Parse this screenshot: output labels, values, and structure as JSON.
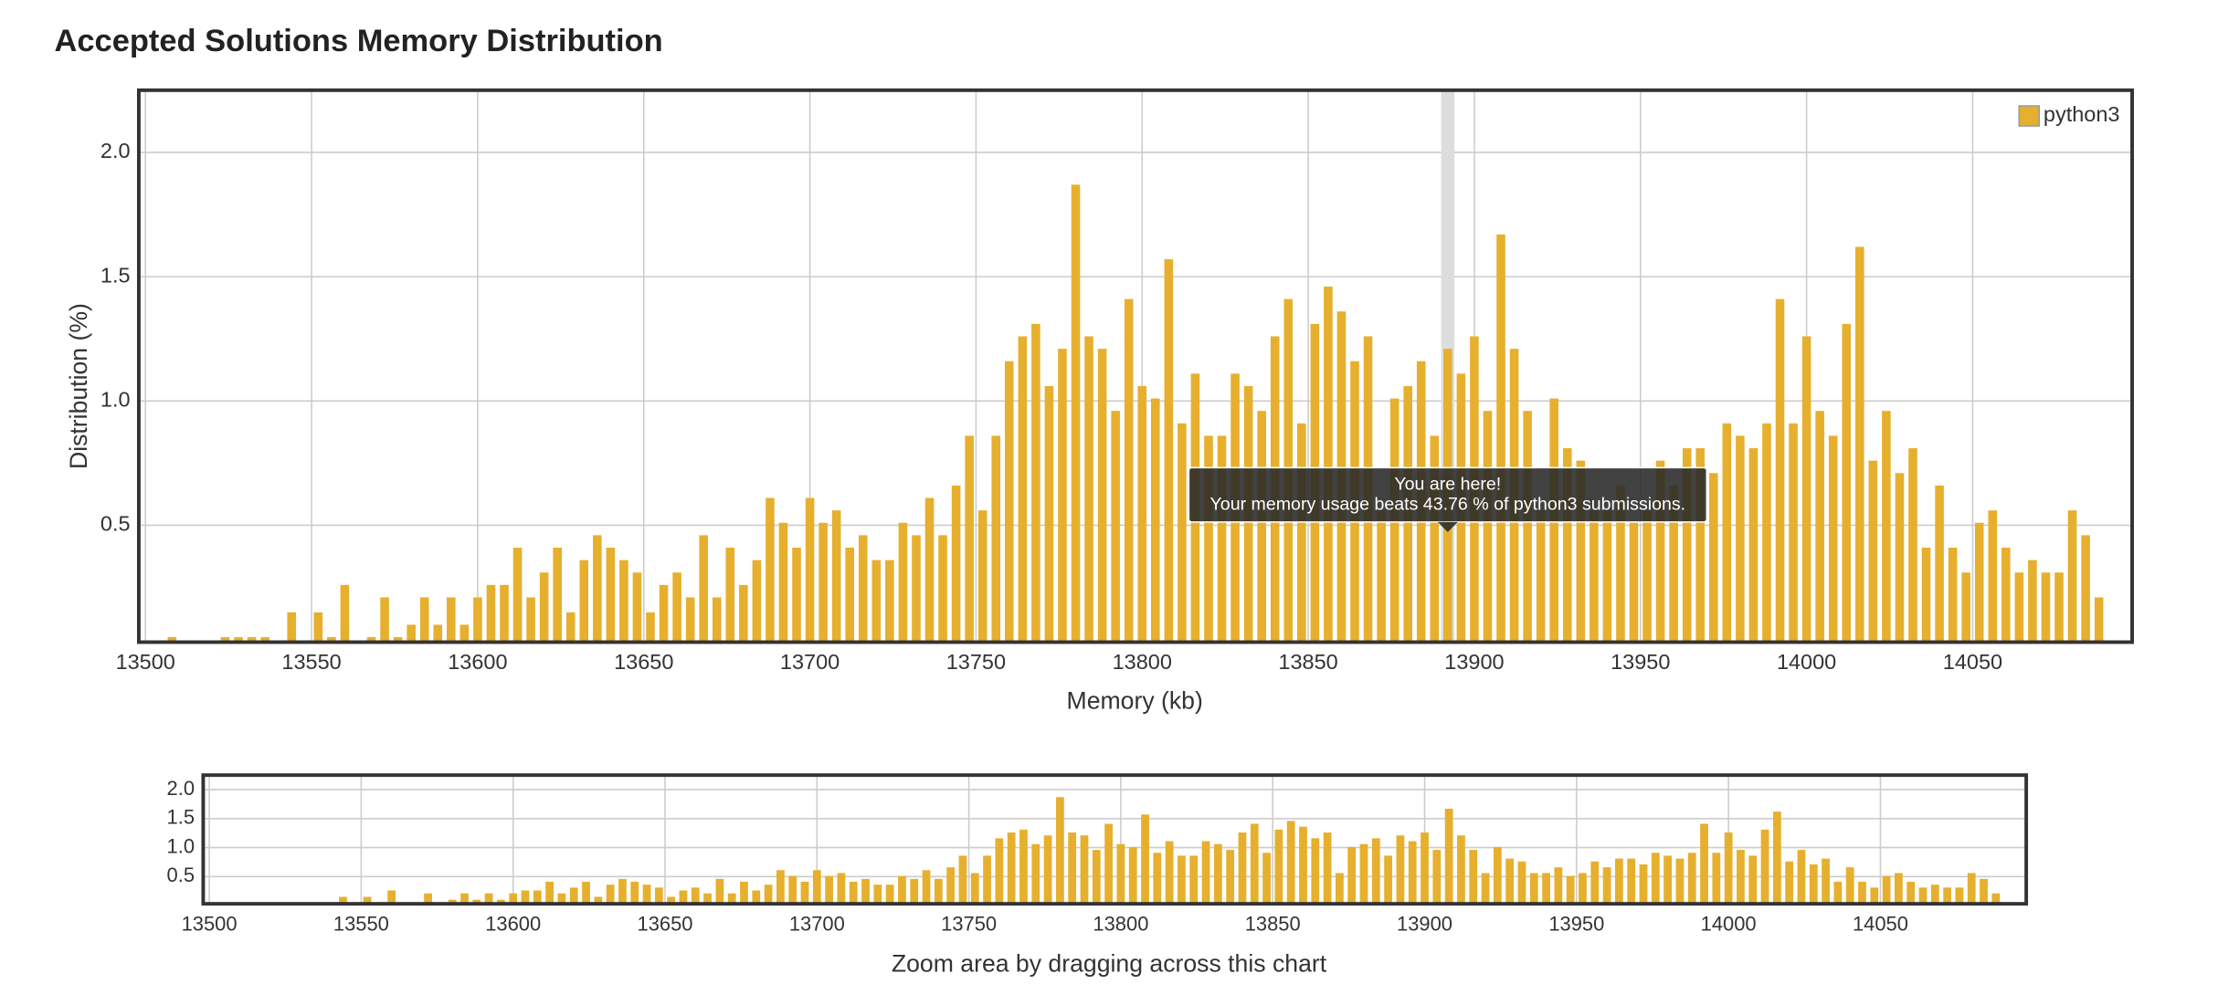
{
  "chart_data": {
    "type": "bar",
    "title": "Accepted Solutions Memory Distribution",
    "x_label": "Memory (kb)",
    "y_label": "Distribution (%)",
    "legend": "top-right",
    "grid": true,
    "xlim": [
      13498,
      14098
    ],
    "xticks": [
      13500,
      13550,
      13600,
      13650,
      13700,
      13750,
      13800,
      13850,
      13900,
      13950,
      14000,
      14050
    ],
    "ylim": [
      0.03,
      2.25
    ],
    "yticks": [
      0.5,
      {
        "value": 1,
        "label": "1.0"
      },
      1.5,
      {
        "value": 2,
        "label": "2.0"
      }
    ],
    "x": [
      13508,
      13512,
      13516,
      13520,
      13524,
      13528,
      13532,
      13536,
      13540,
      13544,
      13548,
      13552,
      13556,
      13560,
      13564,
      13568,
      13572,
      13576,
      13580,
      13584,
      13588,
      13592,
      13596,
      13600,
      13604,
      13608,
      13612,
      13616,
      13620,
      13624,
      13628,
      13632,
      13636,
      13640,
      13644,
      13648,
      13652,
      13656,
      13660,
      13664,
      13668,
      13672,
      13676,
      13680,
      13684,
      13688,
      13692,
      13696,
      13700,
      13704,
      13708,
      13712,
      13716,
      13720,
      13724,
      13728,
      13732,
      13736,
      13740,
      13744,
      13748,
      13752,
      13756,
      13760,
      13764,
      13768,
      13772,
      13776,
      13780,
      13784,
      13788,
      13792,
      13796,
      13800,
      13804,
      13808,
      13812,
      13816,
      13820,
      13824,
      13828,
      13832,
      13836,
      13840,
      13844,
      13848,
      13852,
      13856,
      13860,
      13864,
      13868,
      13872,
      13876,
      13880,
      13884,
      13888,
      13892,
      13896,
      13900,
      13904,
      13908,
      13912,
      13916,
      13920,
      13924,
      13928,
      13932,
      13936,
      13940,
      13944,
      13948,
      13952,
      13956,
      13960,
      13964,
      13968,
      13972,
      13976,
      13980,
      13984,
      13988,
      13992,
      13996,
      14000,
      14004,
      14008,
      14012,
      14016,
      14020,
      14024,
      14028,
      14032,
      14036,
      14040,
      14044,
      14048,
      14052,
      14056,
      14060,
      14064,
      14068,
      14072,
      14076,
      14080,
      14084,
      14088
    ],
    "series": [
      {
        "name": "python3",
        "color": "#e6b02e",
        "values": [
          0.05,
          null,
          null,
          null,
          0.05,
          0.05,
          0.05,
          0.05,
          null,
          0.15,
          null,
          0.15,
          0.05,
          0.26,
          null,
          0.05,
          0.21,
          0.05,
          0.1,
          0.21,
          0.1,
          0.21,
          0.1,
          0.21,
          0.26,
          0.26,
          0.41,
          0.21,
          0.31,
          0.41,
          0.15,
          0.36,
          0.46,
          0.41,
          0.36,
          0.31,
          0.15,
          0.26,
          0.31,
          0.21,
          0.46,
          0.21,
          0.41,
          0.26,
          0.36,
          0.61,
          0.51,
          0.41,
          0.61,
          0.51,
          0.56,
          0.41,
          0.46,
          0.36,
          0.36,
          0.51,
          0.46,
          0.61,
          0.46,
          0.66,
          0.86,
          0.56,
          0.86,
          1.16,
          1.26,
          1.31,
          1.06,
          1.21,
          1.87,
          1.26,
          1.21,
          0.96,
          1.41,
          1.06,
          1.01,
          1.57,
          0.91,
          1.11,
          0.86,
          0.86,
          1.11,
          1.06,
          0.96,
          1.26,
          1.41,
          0.91,
          1.31,
          1.46,
          1.36,
          1.16,
          1.26,
          0.56,
          1.01,
          1.06,
          1.16,
          0.86,
          1.21,
          1.11,
          1.26,
          0.96,
          1.67,
          1.21,
          0.96,
          0.56,
          1.01,
          0.81,
          0.76,
          0.56,
          0.56,
          0.66,
          0.51,
          0.56,
          0.76,
          0.66,
          0.81,
          0.81,
          0.71,
          0.91,
          0.86,
          0.81,
          0.91,
          1.41,
          0.91,
          1.26,
          0.96,
          0.86,
          1.31,
          1.62,
          0.76,
          0.96,
          0.71,
          0.81,
          0.41,
          0.66,
          0.41,
          0.31,
          0.51,
          0.56,
          0.41,
          0.31,
          0.36,
          0.31,
          0.31,
          0.56,
          0.46,
          0.21
        ]
      }
    ],
    "highlight_x": 13892,
    "tooltip": {
      "title": "You are here!",
      "text": "Your memory usage beats 43.76 % of python3 submissions."
    },
    "navigator_caption": "Zoom area by dragging across this chart"
  }
}
